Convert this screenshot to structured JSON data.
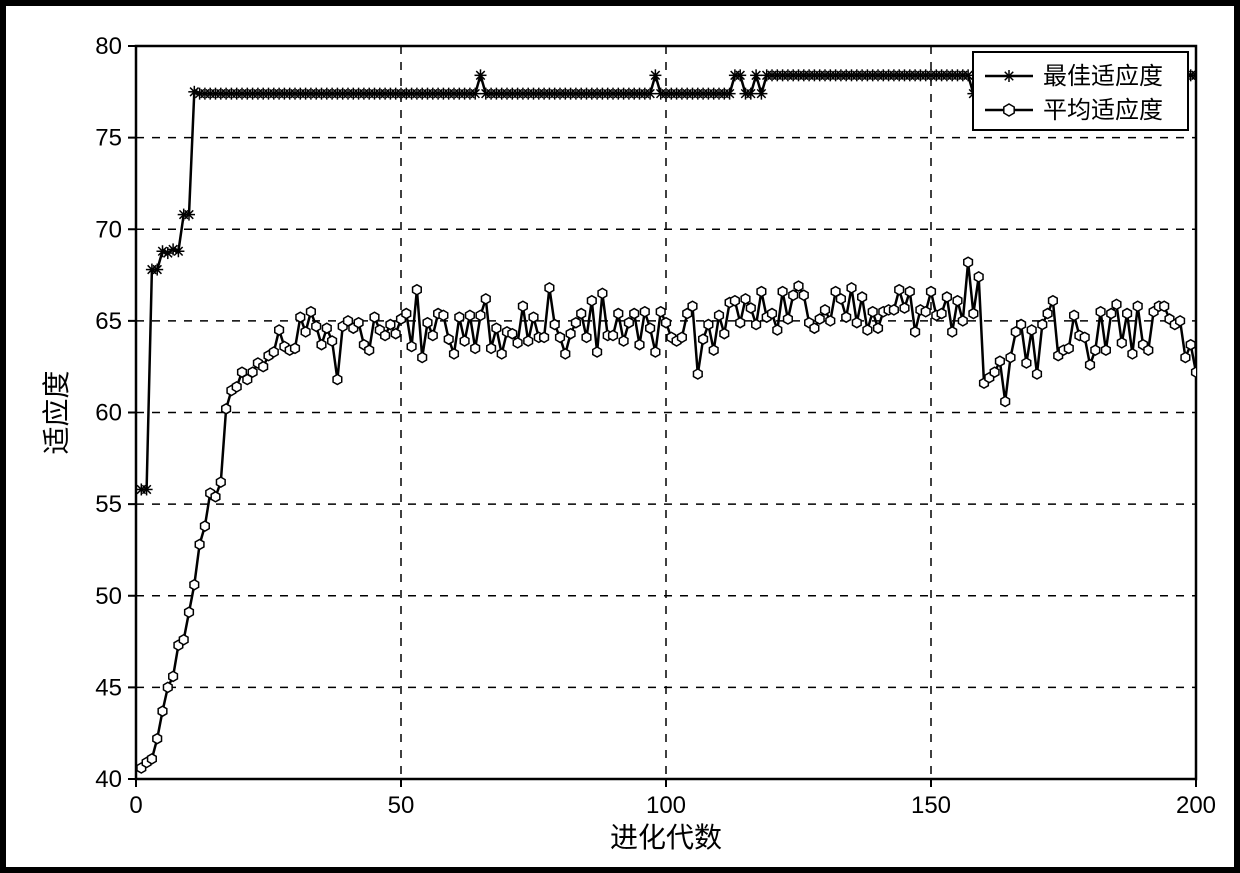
{
  "chart": {
    "type": "line",
    "xlabel": "进化代数",
    "ylabel": "适应度",
    "label_fontsize": 28,
    "tick_fontsize": 24,
    "background_color": "#ffffff",
    "grid_color": "#000000",
    "grid_dash": "8 8",
    "axis_color": "#000000",
    "line_color": "#000000",
    "line_width": 2.5,
    "xlim": [
      0,
      200
    ],
    "ylim": [
      40,
      80
    ],
    "xticks": [
      0,
      50,
      100,
      150,
      200
    ],
    "yticks": [
      40,
      45,
      50,
      55,
      60,
      65,
      70,
      75,
      80
    ],
    "legend": {
      "position": "top-right",
      "border_color": "#000000",
      "bg_color": "#ffffff",
      "items": [
        {
          "label": "最佳适应度",
          "marker": "asterisk"
        },
        {
          "label": "平均适应度",
          "marker": "hex"
        }
      ]
    },
    "series": [
      {
        "name": "best_fitness",
        "legend_label": "最佳适应度",
        "marker": "asterisk",
        "marker_size": 6,
        "x": [
          1,
          2,
          3,
          4,
          5,
          6,
          7,
          8,
          9,
          10,
          11,
          12,
          13,
          14,
          15,
          16,
          17,
          18,
          19,
          20,
          21,
          22,
          23,
          24,
          25,
          26,
          27,
          28,
          29,
          30,
          31,
          32,
          33,
          34,
          35,
          36,
          37,
          38,
          39,
          40,
          41,
          42,
          43,
          44,
          45,
          46,
          47,
          48,
          49,
          50,
          51,
          52,
          53,
          54,
          55,
          56,
          57,
          58,
          59,
          60,
          61,
          62,
          63,
          64,
          65,
          66,
          67,
          68,
          69,
          70,
          71,
          72,
          73,
          74,
          75,
          76,
          77,
          78,
          79,
          80,
          81,
          82,
          83,
          84,
          85,
          86,
          87,
          88,
          89,
          90,
          91,
          92,
          93,
          94,
          95,
          96,
          97,
          98,
          99,
          100,
          101,
          102,
          103,
          104,
          105,
          106,
          107,
          108,
          109,
          110,
          111,
          112,
          113,
          114,
          115,
          116,
          117,
          118,
          119,
          120,
          121,
          122,
          123,
          124,
          125,
          126,
          127,
          128,
          129,
          130,
          131,
          132,
          133,
          134,
          135,
          136,
          137,
          138,
          139,
          140,
          141,
          142,
          143,
          144,
          145,
          146,
          147,
          148,
          149,
          150,
          151,
          152,
          153,
          154,
          155,
          156,
          157,
          158,
          159,
          160,
          161,
          162,
          163,
          164,
          165,
          166,
          167,
          168,
          169,
          170,
          171,
          172,
          173,
          174,
          175,
          176,
          177,
          178,
          179,
          180,
          181,
          182,
          183,
          184,
          185,
          186,
          187,
          188,
          189,
          190,
          191,
          192,
          193,
          194,
          195,
          196,
          197,
          198,
          199,
          200
        ],
        "y": [
          55.8,
          55.8,
          67.8,
          67.8,
          68.8,
          68.7,
          68.9,
          68.8,
          70.8,
          70.8,
          77.5,
          77.4,
          77.4,
          77.4,
          77.4,
          77.4,
          77.4,
          77.4,
          77.4,
          77.4,
          77.4,
          77.4,
          77.4,
          77.4,
          77.4,
          77.4,
          77.4,
          77.4,
          77.4,
          77.4,
          77.4,
          77.4,
          77.4,
          77.4,
          77.4,
          77.4,
          77.4,
          77.4,
          77.4,
          77.4,
          77.4,
          77.4,
          77.4,
          77.4,
          77.4,
          77.4,
          77.4,
          77.4,
          77.4,
          77.4,
          77.4,
          77.4,
          77.4,
          77.4,
          77.4,
          77.4,
          77.4,
          77.4,
          77.4,
          77.4,
          77.4,
          77.4,
          77.4,
          77.4,
          78.4,
          77.4,
          77.4,
          77.4,
          77.4,
          77.4,
          77.4,
          77.4,
          77.4,
          77.4,
          77.4,
          77.4,
          77.4,
          77.4,
          77.4,
          77.4,
          77.4,
          77.4,
          77.4,
          77.4,
          77.4,
          77.4,
          77.4,
          77.4,
          77.4,
          77.4,
          77.4,
          77.4,
          77.4,
          77.4,
          77.4,
          77.4,
          77.4,
          78.4,
          77.4,
          77.4,
          77.4,
          77.4,
          77.4,
          77.4,
          77.4,
          77.4,
          77.4,
          77.4,
          77.4,
          77.4,
          77.4,
          77.4,
          78.4,
          78.4,
          77.4,
          77.4,
          78.4,
          77.4,
          78.4,
          78.4,
          78.4,
          78.4,
          78.4,
          78.4,
          78.4,
          78.4,
          78.4,
          78.4,
          78.4,
          78.4,
          78.4,
          78.4,
          78.4,
          78.4,
          78.4,
          78.4,
          78.4,
          78.4,
          78.4,
          78.4,
          78.4,
          78.4,
          78.4,
          78.4,
          78.4,
          78.4,
          78.4,
          78.4,
          78.4,
          78.4,
          78.4,
          78.4,
          78.4,
          78.4,
          78.4,
          78.4,
          78.4,
          77.4,
          78.4,
          78.4,
          78.4,
          78.4,
          78.4,
          78.4,
          78.4,
          78.4,
          78.4,
          78.4,
          78.4,
          78.4,
          78.4,
          78.4,
          78.4,
          78.4,
          78.4,
          78.4,
          78.4,
          78.4,
          78.4,
          78.4,
          78.4,
          78.4,
          78.4,
          77.4,
          78.4,
          78.4,
          78.4,
          78.4,
          78.4,
          78.4,
          78.4,
          78.4,
          78.4,
          78.4,
          78.4,
          78.4,
          78.4,
          78.4,
          78.4,
          78.4
        ]
      },
      {
        "name": "avg_fitness",
        "legend_label": "平均适应度",
        "marker": "hex",
        "marker_size": 5,
        "x": [
          1,
          2,
          3,
          4,
          5,
          6,
          7,
          8,
          9,
          10,
          11,
          12,
          13,
          14,
          15,
          16,
          17,
          18,
          19,
          20,
          21,
          22,
          23,
          24,
          25,
          26,
          27,
          28,
          29,
          30,
          31,
          32,
          33,
          34,
          35,
          36,
          37,
          38,
          39,
          40,
          41,
          42,
          43,
          44,
          45,
          46,
          47,
          48,
          49,
          50,
          51,
          52,
          53,
          54,
          55,
          56,
          57,
          58,
          59,
          60,
          61,
          62,
          63,
          64,
          65,
          66,
          67,
          68,
          69,
          70,
          71,
          72,
          73,
          74,
          75,
          76,
          77,
          78,
          79,
          80,
          81,
          82,
          83,
          84,
          85,
          86,
          87,
          88,
          89,
          90,
          91,
          92,
          93,
          94,
          95,
          96,
          97,
          98,
          99,
          100,
          101,
          102,
          103,
          104,
          105,
          106,
          107,
          108,
          109,
          110,
          111,
          112,
          113,
          114,
          115,
          116,
          117,
          118,
          119,
          120,
          121,
          122,
          123,
          124,
          125,
          126,
          127,
          128,
          129,
          130,
          131,
          132,
          133,
          134,
          135,
          136,
          137,
          138,
          139,
          140,
          141,
          142,
          143,
          144,
          145,
          146,
          147,
          148,
          149,
          150,
          151,
          152,
          153,
          154,
          155,
          156,
          157,
          158,
          159,
          160,
          161,
          162,
          163,
          164,
          165,
          166,
          167,
          168,
          169,
          170,
          171,
          172,
          173,
          174,
          175,
          176,
          177,
          178,
          179,
          180,
          181,
          182,
          183,
          184,
          185,
          186,
          187,
          188,
          189,
          190,
          191,
          192,
          193,
          194,
          195,
          196,
          197,
          198,
          199,
          200
        ],
        "y": [
          40.6,
          40.9,
          41.1,
          42.2,
          43.7,
          45.0,
          45.6,
          47.3,
          47.6,
          49.1,
          50.6,
          52.8,
          53.8,
          55.6,
          55.4,
          56.2,
          60.2,
          61.2,
          61.4,
          62.2,
          61.8,
          62.2,
          62.7,
          62.5,
          63.1,
          63.3,
          64.5,
          63.6,
          63.4,
          63.5,
          65.2,
          64.4,
          65.5,
          64.7,
          63.7,
          64.6,
          63.9,
          61.8,
          64.7,
          65.0,
          64.6,
          64.9,
          63.7,
          63.4,
          65.2,
          64.5,
          64.2,
          64.8,
          64.3,
          65.1,
          65.4,
          63.6,
          66.7,
          63.0,
          64.9,
          64.2,
          65.4,
          65.3,
          64.0,
          63.2,
          65.2,
          63.9,
          65.3,
          63.5,
          65.3,
          66.2,
          63.5,
          64.6,
          63.2,
          64.4,
          64.3,
          63.8,
          65.8,
          63.9,
          65.2,
          64.1,
          64.1,
          66.8,
          64.8,
          64.1,
          63.2,
          64.3,
          64.9,
          65.4,
          64.1,
          66.1,
          63.3,
          66.5,
          64.2,
          64.2,
          65.4,
          63.9,
          64.9,
          65.4,
          63.7,
          65.5,
          64.6,
          63.3,
          65.5,
          64.9,
          64.1,
          63.9,
          64.1,
          65.4,
          65.8,
          62.1,
          64.0,
          64.8,
          63.4,
          65.3,
          64.3,
          66.0,
          66.1,
          64.9,
          66.2,
          65.7,
          64.8,
          66.6,
          65.2,
          65.4,
          64.5,
          66.6,
          65.1,
          66.4,
          66.9,
          66.4,
          64.9,
          64.6,
          65.1,
          65.6,
          65.0,
          66.6,
          66.2,
          65.2,
          66.8,
          64.9,
          66.3,
          64.5,
          65.5,
          64.6,
          65.5,
          65.6,
          65.6,
          66.7,
          65.7,
          66.6,
          64.4,
          65.6,
          65.5,
          66.6,
          65.3,
          65.4,
          66.3,
          64.4,
          66.1,
          65.0,
          68.2,
          65.4,
          67.4,
          61.6,
          61.9,
          62.2,
          62.8,
          60.6,
          63.0,
          64.4,
          64.8,
          62.7,
          64.5,
          62.1,
          64.8,
          65.4,
          66.1,
          63.1,
          63.4,
          63.5,
          65.3,
          64.2,
          64.1,
          62.6,
          63.4,
          65.5,
          63.4,
          65.4,
          65.9,
          63.8,
          65.4,
          63.2,
          65.8,
          63.7,
          63.4,
          65.5,
          65.8,
          65.8,
          65.1,
          64.8,
          65.0,
          63.0,
          63.7,
          62.2
        ]
      }
    ]
  }
}
